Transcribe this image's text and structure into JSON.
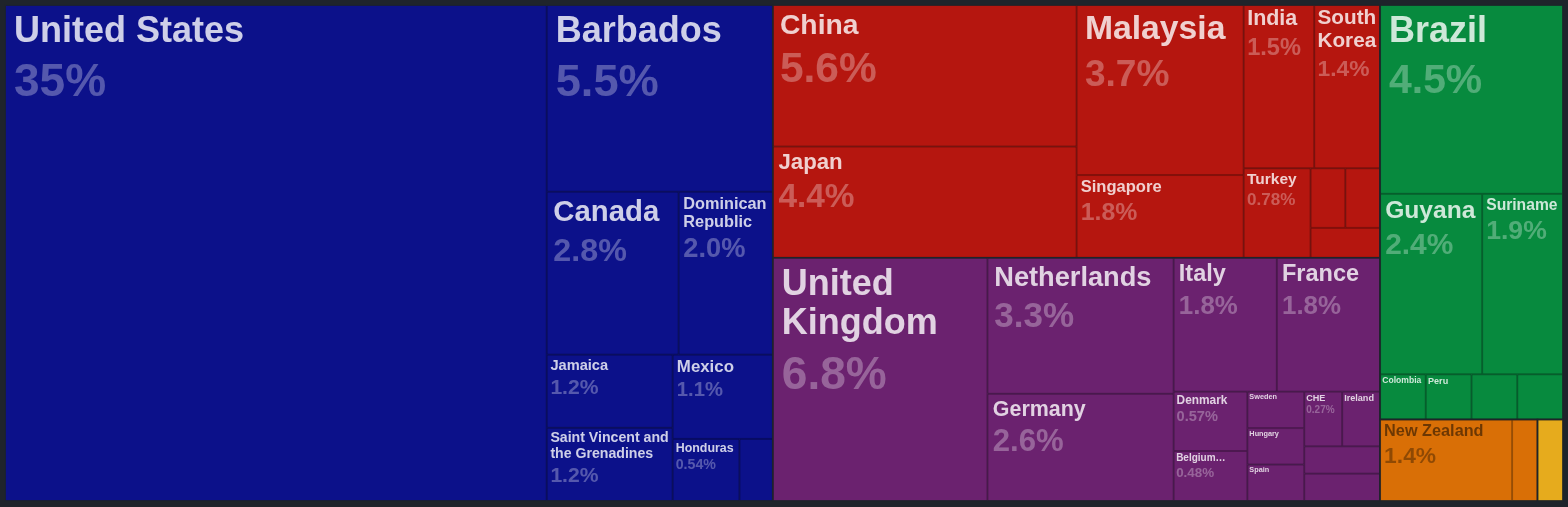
{
  "chart_data": {
    "type": "other",
    "categories": [
      "United States",
      "Barbados",
      "Canada",
      "Dominican Republic",
      "Jamaica",
      "Saint Vincent and the Grenadines",
      "Mexico",
      "Honduras",
      null,
      "China",
      "Japan",
      "Malaysia",
      "Singapore",
      "India",
      "South Korea",
      "Turkey",
      null,
      null,
      null,
      "United Kingdom",
      "Netherlands",
      "Germany",
      "Italy",
      "France",
      "Denmark",
      "Belgium…",
      "Sweden",
      "Hungary",
      "Spain",
      "CHE",
      "Ireland",
      null,
      null,
      "Brazil",
      "Guyana",
      "Suriname",
      "Colombia",
      "Peru",
      null,
      null,
      "New Zealand",
      null,
      null
    ],
    "values": [
      35,
      5.5,
      2.8,
      2.0,
      1.2,
      1.2,
      1.1,
      0.54,
      null,
      5.6,
      4.4,
      3.7,
      1.8,
      1.5,
      1.4,
      0.78,
      null,
      null,
      null,
      6.8,
      3.3,
      2.6,
      1.8,
      1.8,
      0.57,
      0.48,
      null,
      null,
      null,
      0.27,
      null,
      null,
      null,
      4.5,
      2.4,
      1.9,
      null,
      null,
      null,
      null,
      1.4,
      null,
      null
    ],
    "value_labels": [
      "35%",
      "5.5%",
      "2.8%",
      "2.0%",
      "1.2%",
      "1.2%",
      "1.1%",
      "0.54%",
      null,
      "5.6%",
      "4.4%",
      "3.7%",
      "1.8%",
      "1.5%",
      "1.4%",
      "0.78%",
      null,
      null,
      null,
      "6.8%",
      "3.3%",
      "2.6%",
      "1.8%",
      "1.8%",
      "0.57%",
      "0.48%",
      null,
      null,
      null,
      "0.27%",
      null,
      null,
      null,
      "4.5%",
      "2.4%",
      "1.9%",
      null,
      null,
      null,
      null,
      "1.4%",
      null,
      null
    ],
    "colors": [
      "#0c118a",
      "#0c118a",
      "#0c118a",
      "#0c118a",
      "#0c118a",
      "#0c118a",
      "#0c118a",
      "#0c118a",
      "#0c118a",
      "#b5160f",
      "#b5160f",
      "#b5160f",
      "#b5160f",
      "#b5160f",
      "#b5160f",
      "#b5160f",
      "#b5160f",
      "#b5160f",
      "#b5160f",
      "#6b226f",
      "#6b226f",
      "#6b226f",
      "#6b226f",
      "#6b226f",
      "#6b226f",
      "#6b226f",
      "#6b226f",
      "#6b226f",
      "#6b226f",
      "#6b226f",
      "#6b226f",
      "#6b226f",
      "#6b226f",
      "#078a3e",
      "#078a3e",
      "#078a3e",
      "#078a3e",
      "#078a3e",
      "#078a3e",
      "#078a3e",
      "#d96f06",
      "#d96f06",
      "#e6ab1d"
    ]
  }
}
